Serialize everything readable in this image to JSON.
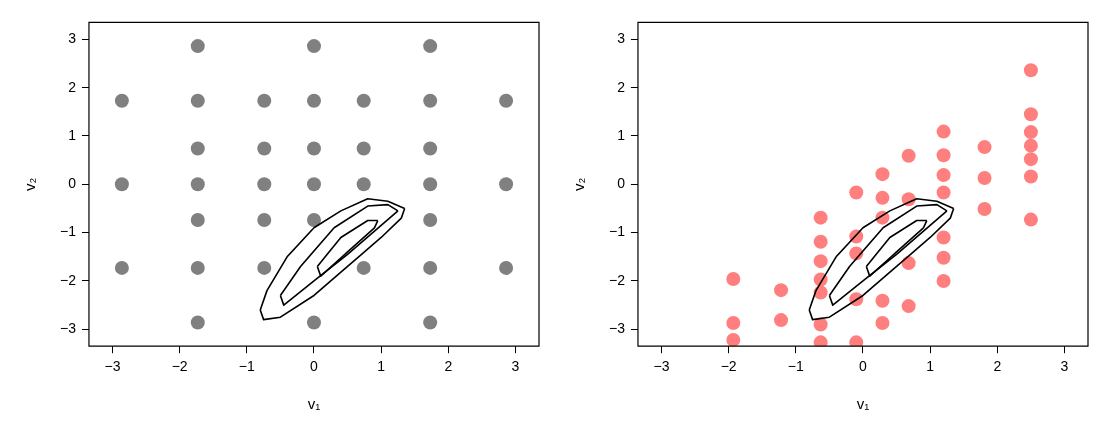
{
  "chart_data": [
    {
      "type": "scatter",
      "xlabel": "v₁",
      "ylabel": "v₂",
      "xlim": [
        -3.35,
        3.35
      ],
      "ylim": [
        -3.35,
        3.35
      ],
      "xticks": [
        -3,
        -2,
        -1,
        0,
        1,
        2,
        3
      ],
      "yticks": [
        -3,
        -2,
        -1,
        0,
        1,
        2,
        3
      ],
      "grid": false,
      "legend": false,
      "series": [
        {
          "type": "scatter",
          "marker": "circle",
          "color": "#808080",
          "x": [
            -1.73,
            0,
            1.73,
            -2.86,
            -1.73,
            -0.74,
            0,
            0.74,
            1.73,
            2.86,
            -1.73,
            -0.74,
            0,
            0.74,
            1.73,
            -2.86,
            -1.73,
            -0.74,
            0,
            0.74,
            1.73,
            2.86,
            -1.73,
            -0.74,
            0,
            1.73,
            -2.86,
            -1.73,
            -0.74,
            0.74,
            1.73,
            2.86,
            -1.73,
            0,
            1.73
          ],
          "values": [
            2.86,
            2.86,
            2.86,
            1.73,
            1.73,
            1.73,
            1.73,
            1.73,
            1.73,
            1.73,
            0.74,
            0.74,
            0.74,
            0.74,
            0.74,
            0,
            0,
            0,
            0,
            0,
            0,
            0,
            -0.74,
            -0.74,
            -0.74,
            -0.74,
            -1.73,
            -1.73,
            -1.73,
            -1.73,
            -1.73,
            -1.73,
            -2.86,
            -2.86,
            -2.86
          ]
        },
        {
          "type": "line",
          "color": "#000000",
          "x": [
            -0.8,
            -0.75,
            -0.5,
            0,
            0.5,
            1.0,
            1.3,
            1.35
          ],
          "values": [
            -2.6,
            -2.8,
            -2.75,
            -2.3,
            -1.7,
            -1.1,
            -0.7,
            -0.5
          ]
        },
        {
          "type": "line",
          "color": "#000000",
          "x": [
            -0.8,
            -0.7,
            -0.4,
            0,
            0.4,
            0.8,
            1.1,
            1.35
          ],
          "values": [
            -2.6,
            -2.2,
            -1.5,
            -0.9,
            -0.55,
            -0.3,
            -0.35,
            -0.5
          ]
        },
        {
          "type": "line",
          "color": "#000000",
          "x": [
            -0.5,
            -0.45,
            0,
            0.5,
            1.0,
            1.25
          ],
          "values": [
            -2.3,
            -2.5,
            -2.0,
            -1.45,
            -0.85,
            -0.55
          ]
        },
        {
          "type": "line",
          "color": "#000000",
          "x": [
            -0.5,
            -0.2,
            0.3,
            0.8,
            1.1,
            1.25
          ],
          "values": [
            -2.3,
            -1.7,
            -0.9,
            -0.45,
            -0.42,
            -0.55
          ]
        },
        {
          "type": "line",
          "color": "#000000",
          "x": [
            0.05,
            0.1,
            0.5,
            0.9,
            0.95
          ],
          "values": [
            -1.7,
            -1.9,
            -1.4,
            -0.9,
            -0.75
          ]
        },
        {
          "type": "line",
          "color": "#000000",
          "x": [
            0.05,
            0.4,
            0.8,
            0.95
          ],
          "values": [
            -1.7,
            -1.1,
            -0.75,
            -0.75
          ]
        }
      ]
    },
    {
      "type": "scatter",
      "xlabel": "v₁",
      "ylabel": "v₂",
      "xlim": [
        -3.35,
        3.35
      ],
      "ylim": [
        -3.35,
        3.35
      ],
      "xticks": [
        -3,
        -2,
        -1,
        0,
        1,
        2,
        3
      ],
      "yticks": [
        -3,
        -2,
        -1,
        0,
        1,
        2,
        3
      ],
      "grid": false,
      "legend": false,
      "series": [
        {
          "type": "scatter",
          "marker": "circle",
          "color": "#ff7f7f",
          "x": [
            -1.93,
            -1.93,
            -1.93,
            -1.22,
            -1.22,
            -0.63,
            -0.63,
            -0.63,
            -0.63,
            -0.63,
            -0.63,
            -0.63,
            -0.1,
            -0.1,
            -0.1,
            -0.1,
            -0.1,
            0.29,
            0.29,
            0.29,
            0.29,
            0.29,
            0.68,
            0.68,
            0.68,
            0.68,
            1.2,
            1.2,
            1.2,
            1.2,
            1.2,
            1.2,
            1.2,
            1.81,
            1.81,
            1.81,
            2.5,
            2.5,
            2.5,
            2.5,
            2.5,
            2.5,
            2.5
          ],
          "values": [
            -1.96,
            -2.87,
            -3.22,
            -2.19,
            -2.81,
            -0.69,
            -1.19,
            -1.59,
            -1.97,
            -2.24,
            -2.9,
            -3.27,
            -0.17,
            -1.08,
            -1.43,
            -2.38,
            -3.27,
            0.21,
            -0.28,
            -0.69,
            -2.41,
            -2.87,
            0.59,
            -0.31,
            -1.63,
            -2.52,
            1.09,
            0.6,
            0.19,
            -0.17,
            -1.1,
            -1.52,
            -2.0,
            0.77,
            0.13,
            -0.51,
            2.36,
            1.45,
            1.08,
            0.8,
            0.52,
            0.16,
            -0.73
          ]
        },
        {
          "type": "line",
          "color": "#000000",
          "x": [
            -0.8,
            -0.75,
            -0.5,
            0,
            0.5,
            1.0,
            1.3,
            1.35
          ],
          "values": [
            -2.6,
            -2.8,
            -2.75,
            -2.3,
            -1.7,
            -1.1,
            -0.7,
            -0.5
          ]
        },
        {
          "type": "line",
          "color": "#000000",
          "x": [
            -0.8,
            -0.7,
            -0.4,
            0,
            0.4,
            0.8,
            1.1,
            1.35
          ],
          "values": [
            -2.6,
            -2.2,
            -1.5,
            -0.9,
            -0.55,
            -0.3,
            -0.35,
            -0.5
          ]
        },
        {
          "type": "line",
          "color": "#000000",
          "x": [
            -0.5,
            -0.45,
            0,
            0.5,
            1.0,
            1.25
          ],
          "values": [
            -2.3,
            -2.5,
            -2.0,
            -1.45,
            -0.85,
            -0.55
          ]
        },
        {
          "type": "line",
          "color": "#000000",
          "x": [
            -0.5,
            -0.2,
            0.3,
            0.8,
            1.1,
            1.25
          ],
          "values": [
            -2.3,
            -1.7,
            -0.9,
            -0.45,
            -0.42,
            -0.55
          ]
        },
        {
          "type": "line",
          "color": "#000000",
          "x": [
            0.05,
            0.1,
            0.5,
            0.9,
            0.95
          ],
          "values": [
            -1.7,
            -1.9,
            -1.4,
            -0.9,
            -0.75
          ]
        },
        {
          "type": "line",
          "color": "#000000",
          "x": [
            0.05,
            0.4,
            0.8,
            0.95
          ],
          "values": [
            -1.7,
            -1.1,
            -0.75,
            -0.75
          ]
        }
      ]
    }
  ]
}
